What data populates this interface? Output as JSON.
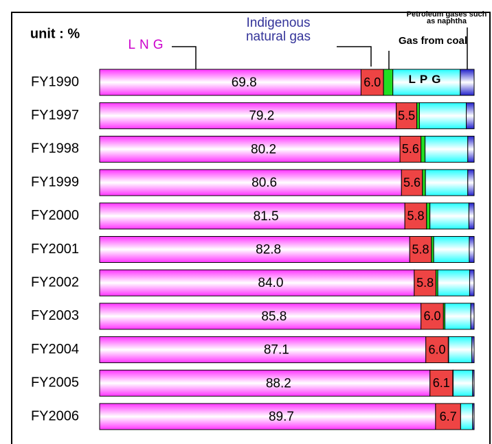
{
  "chart_data": {
    "type": "stacked-bar-horizontal",
    "unit_label": "unit : %",
    "categories": [
      "FY1990",
      "FY1997",
      "FY1998",
      "FY1999",
      "FY2000",
      "FY2001",
      "FY2002",
      "FY2003",
      "FY2004",
      "FY2005",
      "FY2006"
    ],
    "xlim": [
      0,
      100
    ],
    "series": [
      {
        "name": "LNG",
        "color": "#ff33ff",
        "values": [
          69.8,
          79.2,
          80.2,
          80.6,
          81.5,
          82.8,
          84.0,
          85.8,
          87.1,
          88.2,
          89.7
        ],
        "value_labels": [
          "69.8",
          "79.2",
          "80.2",
          "80.6",
          "81.5",
          "82.8",
          "84.0",
          "85.8",
          "87.1",
          "88.2",
          "89.7"
        ]
      },
      {
        "name": "Indigenous natural gas",
        "color": "#ee4444",
        "values": [
          6.0,
          5.5,
          5.6,
          5.6,
          5.8,
          5.8,
          5.8,
          6.0,
          6.0,
          6.1,
          6.7
        ],
        "value_labels": [
          "6.0",
          "5.5",
          "5.6",
          "5.6",
          "5.8",
          "5.8",
          "5.8",
          "6.0",
          "6.0",
          "6.1",
          "6.7"
        ]
      },
      {
        "name": "Gas from coal",
        "color": "#22dd22",
        "values": [
          2.5,
          0.7,
          1.1,
          0.8,
          0.9,
          0.6,
          0.5,
          0.4,
          0.1,
          0.1,
          0.0
        ]
      },
      {
        "name": "LPG",
        "color": "#22ffff",
        "values": [
          18.0,
          12.5,
          11.4,
          11.3,
          10.4,
          9.5,
          8.5,
          6.9,
          6.2,
          5.2,
          3.2
        ]
      },
      {
        "name": "Petroleum gases such as naphtha",
        "color": "#2222cc",
        "values": [
          3.7,
          2.1,
          1.7,
          1.7,
          1.4,
          1.3,
          1.2,
          0.9,
          0.6,
          0.4,
          0.4
        ]
      }
    ]
  }
}
